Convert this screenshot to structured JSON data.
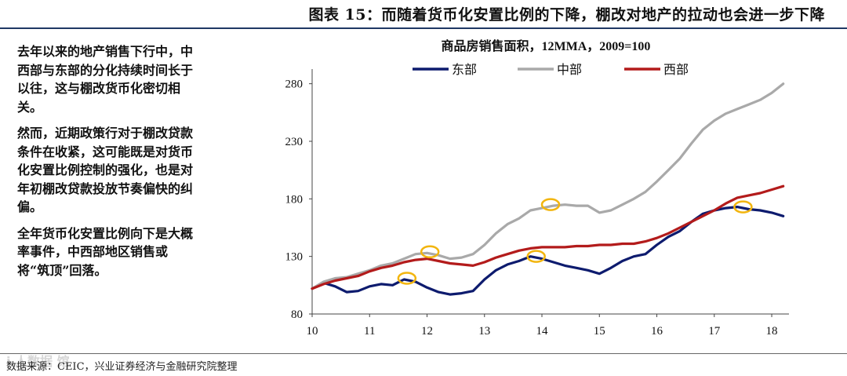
{
  "header": {
    "title": "图表 15：而随着货币化安置比例的下降，棚改对地产的拉动也会进一步下降"
  },
  "commentary": {
    "paragraphs": [
      "去年以来的地产销售下行中，中西部与东部的分化持续时间长于以往，这与棚改货币化密切相关。",
      "然而，近期政策行对于棚改贷款条件在收紧，这可能既是对货币化安置比例控制的强化，也是对年初棚改贷款投放节奏偏快的纠偏。",
      "全年货币化安置比例向下是大概率事件，中西部地区销售或将“筑顶”回落。"
    ]
  },
  "footer": {
    "source": "数据来源：CEIC，兴业证券经济与金融研究院整理",
    "watermark": "i 人数据 馆"
  },
  "chart_data": {
    "type": "line",
    "title": "商品房销售面积，12MMA，2009=100",
    "xlabel": "",
    "ylabel": "",
    "xlim": [
      10,
      18.3
    ],
    "ylim": [
      80,
      290
    ],
    "xticks": [
      10,
      11,
      12,
      13,
      14,
      15,
      16,
      17,
      18
    ],
    "xtick_labels": [
      "10",
      "11",
      "12",
      "13",
      "14",
      "15",
      "16",
      "17",
      "18"
    ],
    "yticks": [
      80,
      130,
      180,
      230,
      280
    ],
    "ytick_labels": [
      "80",
      "130",
      "180",
      "230",
      "280"
    ],
    "legend_position": "top",
    "series": [
      {
        "name": "东部",
        "color": "#0d1b6e",
        "points": [
          [
            10.0,
            102
          ],
          [
            10.2,
            107
          ],
          [
            10.4,
            104
          ],
          [
            10.6,
            99
          ],
          [
            10.8,
            100
          ],
          [
            11.0,
            104
          ],
          [
            11.2,
            106
          ],
          [
            11.4,
            105
          ],
          [
            11.6,
            110
          ],
          [
            11.8,
            108
          ],
          [
            12.0,
            103
          ],
          [
            12.2,
            99
          ],
          [
            12.4,
            97
          ],
          [
            12.6,
            98
          ],
          [
            12.8,
            100
          ],
          [
            13.0,
            110
          ],
          [
            13.2,
            118
          ],
          [
            13.4,
            123
          ],
          [
            13.6,
            126
          ],
          [
            13.8,
            130
          ],
          [
            14.0,
            128
          ],
          [
            14.2,
            125
          ],
          [
            14.4,
            122
          ],
          [
            14.6,
            120
          ],
          [
            14.8,
            118
          ],
          [
            15.0,
            115
          ],
          [
            15.2,
            120
          ],
          [
            15.4,
            126
          ],
          [
            15.6,
            130
          ],
          [
            15.8,
            132
          ],
          [
            16.0,
            140
          ],
          [
            16.2,
            147
          ],
          [
            16.4,
            152
          ],
          [
            16.6,
            160
          ],
          [
            16.8,
            167
          ],
          [
            17.0,
            170
          ],
          [
            17.2,
            172
          ],
          [
            17.4,
            173
          ],
          [
            17.6,
            171
          ],
          [
            17.8,
            170
          ],
          [
            18.0,
            168
          ],
          [
            18.2,
            165
          ]
        ]
      },
      {
        "name": "中部",
        "color": "#a9a9a9",
        "points": [
          [
            10.0,
            102
          ],
          [
            10.2,
            108
          ],
          [
            10.4,
            111
          ],
          [
            10.6,
            112
          ],
          [
            10.8,
            115
          ],
          [
            11.0,
            118
          ],
          [
            11.2,
            122
          ],
          [
            11.4,
            124
          ],
          [
            11.6,
            128
          ],
          [
            11.8,
            132
          ],
          [
            12.0,
            133
          ],
          [
            12.2,
            131
          ],
          [
            12.4,
            128
          ],
          [
            12.6,
            129
          ],
          [
            12.8,
            132
          ],
          [
            13.0,
            140
          ],
          [
            13.2,
            150
          ],
          [
            13.4,
            158
          ],
          [
            13.6,
            163
          ],
          [
            13.8,
            170
          ],
          [
            14.0,
            172
          ],
          [
            14.2,
            174
          ],
          [
            14.4,
            175
          ],
          [
            14.6,
            174
          ],
          [
            14.8,
            174
          ],
          [
            15.0,
            168
          ],
          [
            15.2,
            170
          ],
          [
            15.4,
            175
          ],
          [
            15.6,
            180
          ],
          [
            15.8,
            186
          ],
          [
            16.0,
            195
          ],
          [
            16.2,
            205
          ],
          [
            16.4,
            215
          ],
          [
            16.6,
            228
          ],
          [
            16.8,
            240
          ],
          [
            17.0,
            248
          ],
          [
            17.2,
            254
          ],
          [
            17.4,
            258
          ],
          [
            17.6,
            262
          ],
          [
            17.8,
            266
          ],
          [
            18.0,
            272
          ],
          [
            18.2,
            280
          ]
        ]
      },
      {
        "name": "西部",
        "color": "#b31b1b",
        "points": [
          [
            10.0,
            102
          ],
          [
            10.2,
            106
          ],
          [
            10.4,
            109
          ],
          [
            10.6,
            111
          ],
          [
            10.8,
            113
          ],
          [
            11.0,
            117
          ],
          [
            11.2,
            120
          ],
          [
            11.4,
            122
          ],
          [
            11.6,
            125
          ],
          [
            11.8,
            127
          ],
          [
            12.0,
            128
          ],
          [
            12.2,
            126
          ],
          [
            12.4,
            124
          ],
          [
            12.6,
            123
          ],
          [
            12.8,
            122
          ],
          [
            13.0,
            125
          ],
          [
            13.2,
            129
          ],
          [
            13.4,
            132
          ],
          [
            13.6,
            135
          ],
          [
            13.8,
            137
          ],
          [
            14.0,
            138
          ],
          [
            14.2,
            138
          ],
          [
            14.4,
            138
          ],
          [
            14.6,
            139
          ],
          [
            14.8,
            139
          ],
          [
            15.0,
            140
          ],
          [
            15.2,
            140
          ],
          [
            15.4,
            141
          ],
          [
            15.6,
            141
          ],
          [
            15.8,
            143
          ],
          [
            16.0,
            146
          ],
          [
            16.2,
            150
          ],
          [
            16.4,
            155
          ],
          [
            16.6,
            160
          ],
          [
            16.8,
            165
          ],
          [
            17.0,
            170
          ],
          [
            17.2,
            176
          ],
          [
            17.4,
            181
          ],
          [
            17.6,
            183
          ],
          [
            17.8,
            185
          ],
          [
            18.0,
            188
          ],
          [
            18.2,
            191
          ]
        ]
      }
    ],
    "annotations": [
      {
        "shape": "ellipse",
        "color": "#f2b50f",
        "x": 11.65,
        "y": 111
      },
      {
        "shape": "ellipse",
        "color": "#f2b50f",
        "x": 12.05,
        "y": 134
      },
      {
        "shape": "ellipse",
        "color": "#f2b50f",
        "x": 13.9,
        "y": 130
      },
      {
        "shape": "ellipse",
        "color": "#f2b50f",
        "x": 14.15,
        "y": 175
      },
      {
        "shape": "ellipse",
        "color": "#f2b50f",
        "x": 17.5,
        "y": 173
      }
    ]
  }
}
